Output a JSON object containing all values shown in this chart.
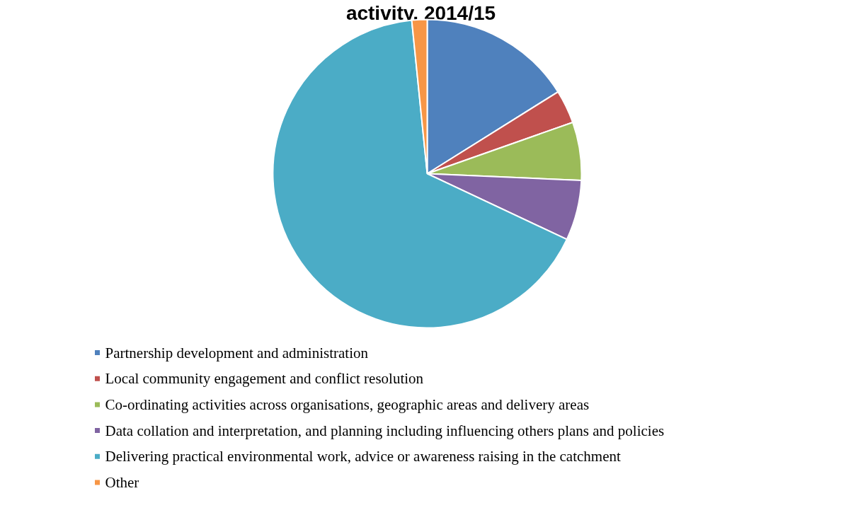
{
  "chart_data": {
    "type": "pie",
    "title": "activity, 2014/15",
    "categories": [
      "Partnership development and administration",
      "Local community engagement and conflict resolution",
      "Co-ordinating activities across organisations, geographic areas and delivery areas",
      "Data collation and interpretation, and planning including influencing others plans and policies",
      "Delivering practical environmental work, advice or awareness raising in the catchment",
      "Other"
    ],
    "values": [
      16.1,
      3.5,
      6.1,
      6.3,
      66.4,
      1.6
    ],
    "colors": [
      "#4f81bd",
      "#c0504d",
      "#9bbb59",
      "#8064a2",
      "#4bacc6",
      "#f79646"
    ],
    "legend": "bottom"
  }
}
